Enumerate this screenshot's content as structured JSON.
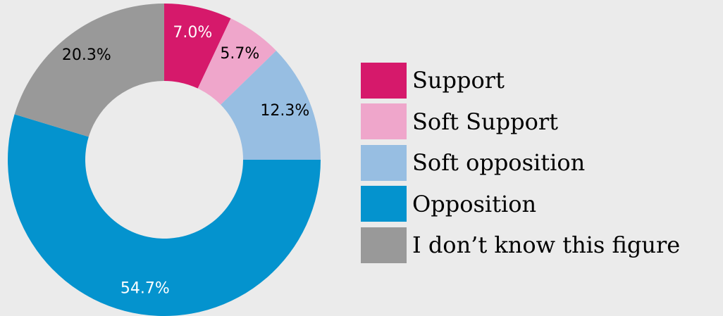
{
  "chart_data": {
    "type": "pie",
    "donut": true,
    "title": "",
    "slices": [
      {
        "name": "Support",
        "value": 7.0,
        "label": "7.0%",
        "color": "#d6196b",
        "label_color": "#ffffff"
      },
      {
        "name": "Soft Support",
        "value": 5.7,
        "label": "5.7%",
        "color": "#efa6cb",
        "label_color": "#000000"
      },
      {
        "name": "Soft opposition",
        "value": 12.3,
        "label": "12.3%",
        "color": "#97bee2",
        "label_color": "#000000"
      },
      {
        "name": "Opposition",
        "value": 54.7,
        "label": "54.7%",
        "color": "#0493ce",
        "label_color": "#ffffff"
      },
      {
        "name": "I don’t know this figure",
        "value": 20.3,
        "label": "20.3%",
        "color": "#999999",
        "label_color": "#000000"
      }
    ],
    "legend_position": "right",
    "background": "#ebebeb"
  }
}
